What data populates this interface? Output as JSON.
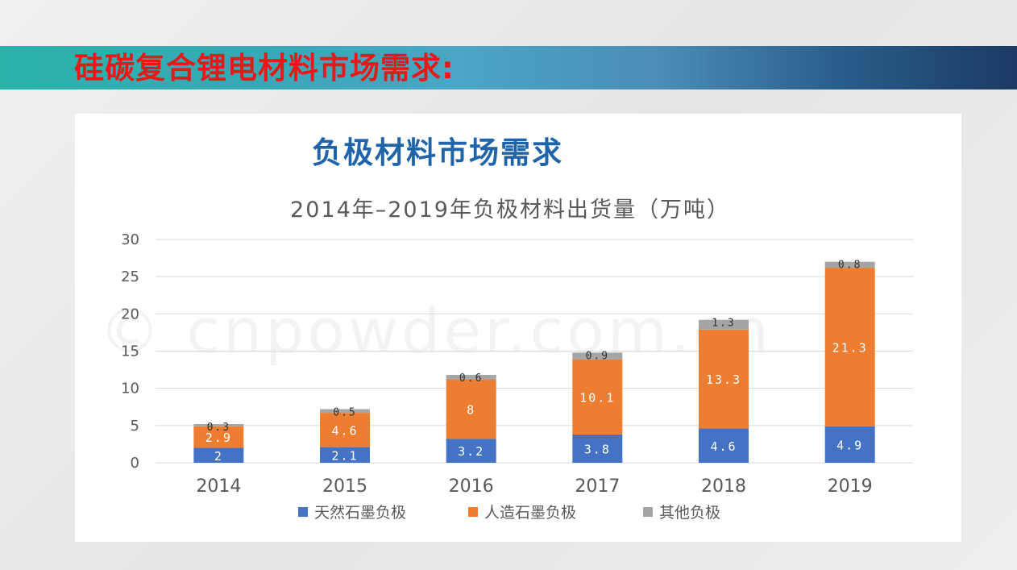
{
  "banner": {
    "title": "硅碳复合锂电材料市场需求:"
  },
  "panel": {
    "title": "负极材料市场需求",
    "watermark": "© cnpowder.com.cn"
  },
  "colors": {
    "natural": "#4472c4",
    "artificial": "#ed7d31",
    "other": "#a5a5a5",
    "grid": "#d9d9d9",
    "text": "#595959"
  },
  "chart_data": {
    "type": "bar",
    "stacked": true,
    "title": "2014年–2019年负极材料出货量（万吨）",
    "categories": [
      "2014",
      "2015",
      "2016",
      "2017",
      "2018",
      "2019"
    ],
    "series": [
      {
        "name": "天然石墨负极",
        "values": [
          2,
          2.1,
          3.2,
          3.8,
          4.6,
          4.9
        ],
        "labels": [
          "2",
          "2.1",
          "3.2",
          "3.8",
          "4.6",
          "4.9"
        ]
      },
      {
        "name": "人造石墨负极",
        "values": [
          2.9,
          4.6,
          8,
          10.1,
          13.3,
          21.3
        ],
        "labels": [
          "2.9",
          "4.6",
          "8",
          "10.1",
          "13.3",
          "21.3"
        ]
      },
      {
        "name": "其他负极",
        "values": [
          0.3,
          0.5,
          0.6,
          0.9,
          1.3,
          0.8
        ],
        "labels": [
          "0.3",
          "0.5",
          "0.6",
          "0.9",
          "1.3",
          "0.8"
        ]
      }
    ],
    "yticks": [
      "0",
      "5",
      "10",
      "15",
      "20",
      "25",
      "30"
    ],
    "ylim": [
      0,
      30
    ],
    "grid": true,
    "legend": "bottom"
  }
}
